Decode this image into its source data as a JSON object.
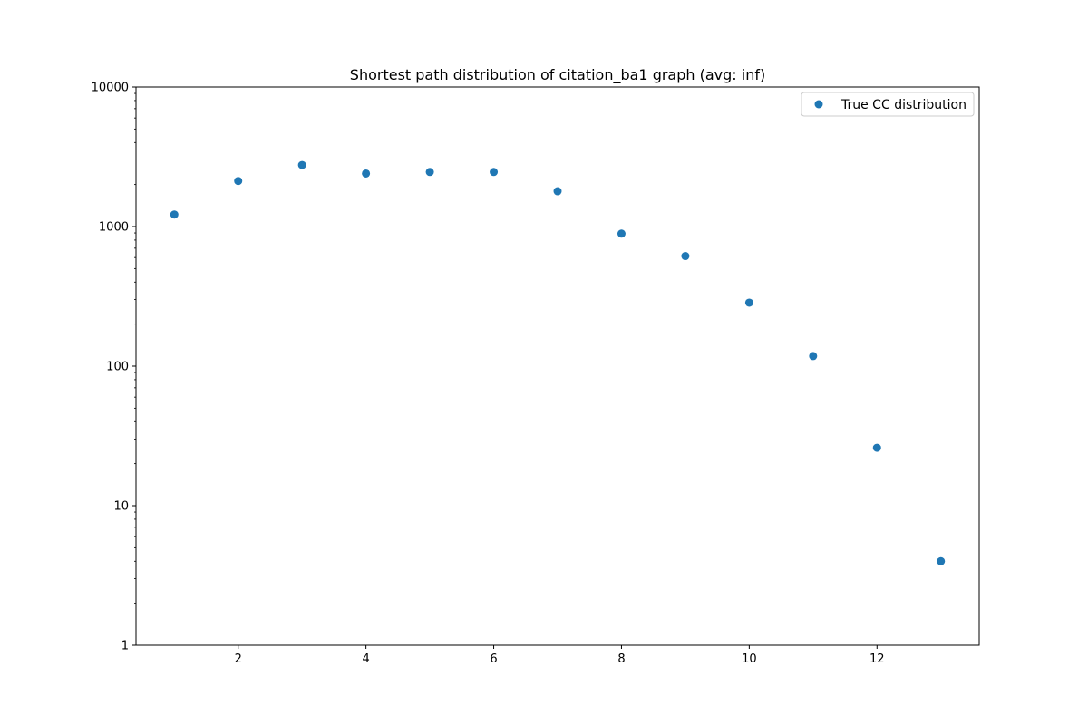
{
  "chart_data": {
    "type": "scatter",
    "title": "Shortest path distribution of citation_ba1 graph (avg: inf)",
    "xlabel": "",
    "ylabel": "",
    "x_scale": "linear",
    "y_scale": "log",
    "xlim": [
      0.4,
      13.6
    ],
    "ylim": [
      1,
      10000
    ],
    "x_ticks": [
      2,
      4,
      6,
      8,
      10,
      12
    ],
    "y_ticks": [
      1,
      10,
      100,
      1000,
      10000
    ],
    "grid": false,
    "legend_position": "top-right",
    "series": [
      {
        "name": "True CC distribution",
        "color": "#1f77b4",
        "marker": "circle",
        "x": [
          1,
          2,
          3,
          4,
          5,
          6,
          7,
          8,
          9,
          10,
          11,
          12,
          13
        ],
        "y": [
          1220,
          2120,
          2760,
          2400,
          2460,
          2460,
          1790,
          890,
          615,
          285,
          118,
          26,
          4
        ]
      }
    ]
  }
}
